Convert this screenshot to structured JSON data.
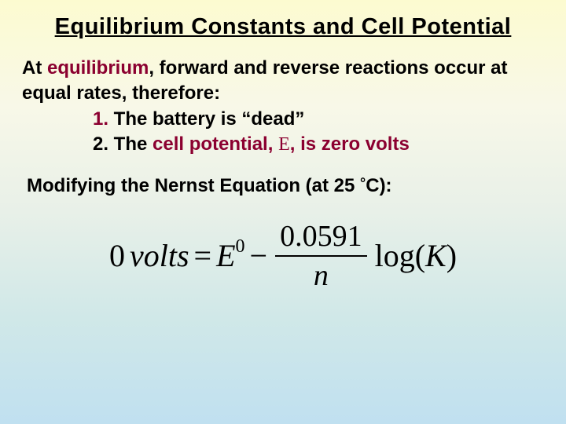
{
  "colors": {
    "accent": "#8b0030",
    "text": "#000000",
    "gradient_top": "#fcfbd0",
    "gradient_bottom": "#c0e0f0"
  },
  "title": "Equilibrium Constants and Cell Potential",
  "intro": {
    "prefix": "At ",
    "equilibrium_word": "equilibrium",
    "after_equilibrium": ", forward and reverse reactions occur at equal rates, therefore:"
  },
  "list": {
    "item1_num": "1.",
    "item1_text": " The battery is “dead”",
    "item2_num": "2.",
    "item2_text_a": " The ",
    "item2_highlight": "cell potential, ",
    "item2_E": "E",
    "item2_text_b": ", is zero volts"
  },
  "nernst_line": {
    "text_a": "Modifying the Nernst Equation (at 25 ",
    "degree": "°",
    "text_b": "C):"
  },
  "equation": {
    "lhs_zero": "0",
    "lhs_volts": "volts",
    "eq_sign": "=",
    "E_symbol": "E",
    "E_super": "0",
    "minus": "−",
    "frac_top": "0.0591",
    "frac_bot": "n",
    "log_text": "log(",
    "K_symbol": "K",
    "close_paren": ")"
  },
  "typography": {
    "title_fontsize": 29,
    "body_fontsize": 24,
    "equation_fontsize": 40,
    "body_font": "Comic Sans MS",
    "equation_font": "Times New Roman"
  }
}
